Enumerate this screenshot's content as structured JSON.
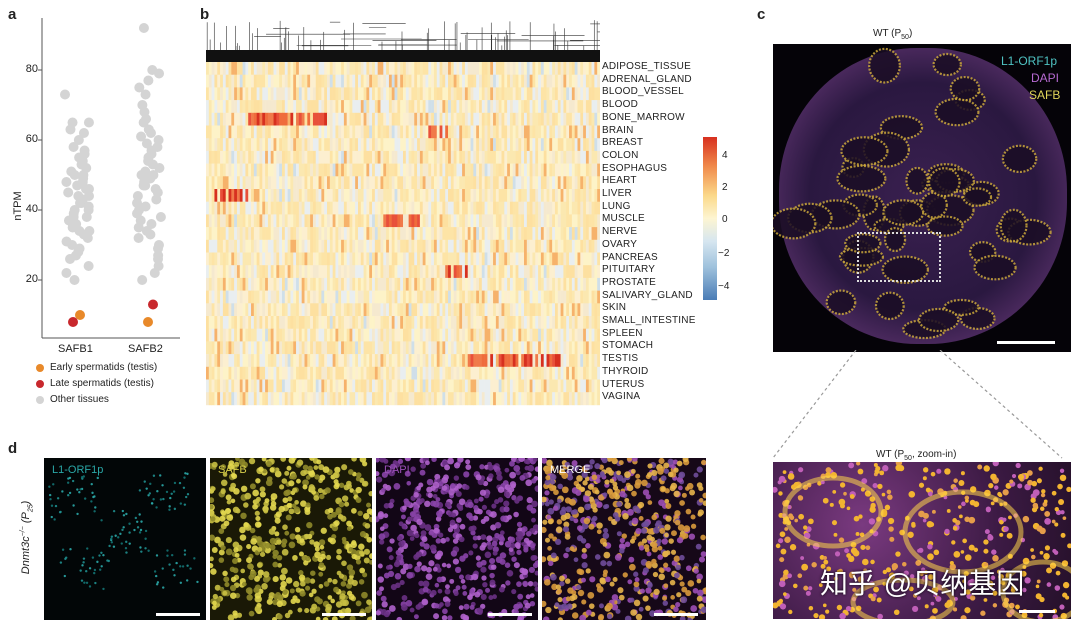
{
  "panels": {
    "a": "a",
    "b": "b",
    "c": "c",
    "d": "d"
  },
  "panel_a": {
    "ylabel": "nTPM",
    "yticks": [
      "80",
      "60",
      "40",
      "20"
    ],
    "categories": [
      "SAFB1",
      "SAFB2"
    ],
    "legend": [
      {
        "label": "Early spermatids (testis)",
        "color": "#e8892a"
      },
      {
        "label": "Late spermatids (testis)",
        "color": "#c8282d"
      },
      {
        "label": "Other tissues",
        "color": "#d4d4d4"
      }
    ]
  },
  "chart_data": {
    "type": "scatter",
    "title": "",
    "xlabel": "",
    "ylabel": "nTPM",
    "ylim": [
      0,
      95
    ],
    "categories": [
      "SAFB1",
      "SAFB2"
    ],
    "series": [
      {
        "name": "Early spermatids (testis)",
        "x": [
          "SAFB1",
          "SAFB2"
        ],
        "values": [
          10,
          8
        ]
      },
      {
        "name": "Late spermatids (testis)",
        "x": [
          "SAFB1",
          "SAFB2"
        ],
        "values": [
          8,
          13
        ]
      },
      {
        "name": "Other tissues (SAFB1)",
        "x": "SAFB1",
        "values": [
          73,
          65,
          65,
          63,
          62,
          60,
          58,
          57,
          56,
          55,
          54,
          53,
          52,
          51,
          50,
          50,
          49,
          48,
          48,
          47,
          46,
          46,
          45,
          44,
          44,
          43,
          42,
          42,
          41,
          40,
          40,
          39,
          38,
          38,
          37,
          36,
          36,
          35,
          34,
          34,
          33,
          32,
          31,
          30,
          29,
          28,
          27,
          26,
          24,
          22,
          20
        ]
      },
      {
        "name": "Other tissues (SAFB2)",
        "x": "SAFB2",
        "values": [
          92,
          80,
          79,
          77,
          75,
          73,
          70,
          68,
          66,
          65,
          63,
          62,
          61,
          60,
          59,
          58,
          57,
          56,
          55,
          54,
          53,
          52,
          51,
          50,
          50,
          49,
          48,
          47,
          47,
          46,
          45,
          44,
          43,
          42,
          41,
          40,
          39,
          38,
          37,
          36,
          35,
          34,
          33,
          32,
          30,
          29,
          27,
          26,
          24,
          22,
          20
        ]
      }
    ]
  },
  "panel_b": {
    "tissues": [
      "ADIPOSE_TISSUE",
      "ADRENAL_GLAND",
      "BLOOD_VESSEL",
      "BLOOD",
      "BONE_MARROW",
      "BRAIN",
      "BREAST",
      "COLON",
      "ESOPHAGUS",
      "HEART",
      "LIVER",
      "LUNG",
      "MUSCLE",
      "NERVE",
      "OVARY",
      "PANCREAS",
      "PITUITARY",
      "PROSTATE",
      "SALIVARY_GLAND",
      "SKIN",
      "SMALL_INTESTINE",
      "SPLEEN",
      "STOMACH",
      "TESTIS",
      "THYROID",
      "UTERUS",
      "VAGINA"
    ],
    "colorbar_ticks": [
      "4",
      "2",
      "0",
      "−2",
      "−4"
    ],
    "colorbar_range": [
      -5,
      5
    ],
    "high_blocks": [
      {
        "tissue": "BONE_MARROW",
        "from": 0.1,
        "to": 0.3
      },
      {
        "tissue": "LIVER",
        "from": 0.02,
        "to": 0.1
      },
      {
        "tissue": "MUSCLE",
        "from": 0.45,
        "to": 0.54
      },
      {
        "tissue": "TESTIS",
        "from": 0.66,
        "to": 0.9
      },
      {
        "tissue": "BRAIN",
        "from": 0.56,
        "to": 0.62
      },
      {
        "tissue": "PITUITARY",
        "from": 0.6,
        "to": 0.66
      }
    ]
  },
  "panel_c": {
    "title": "WT (P",
    "title_sub": "50",
    "title_end": ")",
    "zoom_title": "WT (P",
    "zoom_sub": "50",
    "zoom_end": ", zoom-in)",
    "channels": [
      {
        "label": "L1-ORF1p",
        "color": "#4fc3c3"
      },
      {
        "label": "DAPI",
        "color": "#b76ad2"
      },
      {
        "label": "SAFB",
        "color": "#e0d45a"
      }
    ]
  },
  "panel_d": {
    "row_label": "Dnmt3c",
    "row_label_sup": "−/−",
    "row_label_paren": "(P",
    "row_label_sub": "25",
    "row_label_end": ")",
    "tiles": [
      {
        "label": "L1-ORF1p",
        "color": "#2aa7a7"
      },
      {
        "label": "SAFB",
        "color": "#d8cf4a"
      },
      {
        "label": "DAPI",
        "color": "#9a4fb7"
      },
      {
        "label": "MERGE",
        "color": "#ffffff"
      }
    ]
  },
  "watermark": "知乎 @贝纳基因"
}
